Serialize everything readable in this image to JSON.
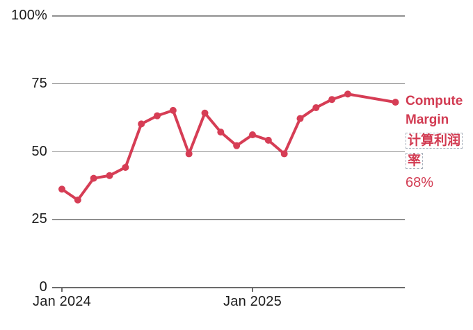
{
  "chart_data": {
    "type": "line",
    "title": "",
    "xlabel": "",
    "ylabel": "",
    "ylim": [
      0,
      100
    ],
    "grid": true,
    "legend_position": "right-of-line-end",
    "line_color": "#d63d55",
    "gridline_color": "#8f8f8f",
    "axis_text_color": "#1c1c1c",
    "y_ticks": [
      {
        "value": 0,
        "label": "0"
      },
      {
        "value": 25,
        "label": "25"
      },
      {
        "value": 50,
        "label": "50"
      },
      {
        "value": 75,
        "label": "75"
      },
      {
        "value": 100,
        "label": "100%"
      }
    ],
    "x_ticks": [
      {
        "month": "Jan 2024",
        "label": "Jan 2024"
      },
      {
        "month": "Jan 2025",
        "label": "Jan 2025"
      }
    ],
    "series": [
      {
        "name": "Compute Margin",
        "unit": "%",
        "points": [
          {
            "month": "Jan 2024",
            "value": 36
          },
          {
            "month": "Feb 2024",
            "value": 32
          },
          {
            "month": "Mar 2024",
            "value": 40
          },
          {
            "month": "Apr 2024",
            "value": 41
          },
          {
            "month": "May 2024",
            "value": 44
          },
          {
            "month": "Jun 2024",
            "value": 60
          },
          {
            "month": "Jul 2024",
            "value": 63
          },
          {
            "month": "Aug 2024",
            "value": 65
          },
          {
            "month": "Sep 2024",
            "value": 49
          },
          {
            "month": "Oct 2024",
            "value": 64
          },
          {
            "month": "Nov 2024",
            "value": 57
          },
          {
            "month": "Dec 2024",
            "value": 52
          },
          {
            "month": "Jan 2025",
            "value": 56
          },
          {
            "month": "Feb 2025",
            "value": 54
          },
          {
            "month": "Mar 2025",
            "value": 49
          },
          {
            "month": "Apr 2025",
            "value": 62
          },
          {
            "month": "May 2025",
            "value": 66
          },
          {
            "month": "Jun 2025",
            "value": 69
          },
          {
            "month": "Jul 2025",
            "value": 71
          },
          {
            "month": "Oct 2025",
            "value": 68
          }
        ]
      }
    ]
  },
  "legend": {
    "name_en": "Compute Margin",
    "name_zh": "计算利润率",
    "latest_value": "68%"
  }
}
